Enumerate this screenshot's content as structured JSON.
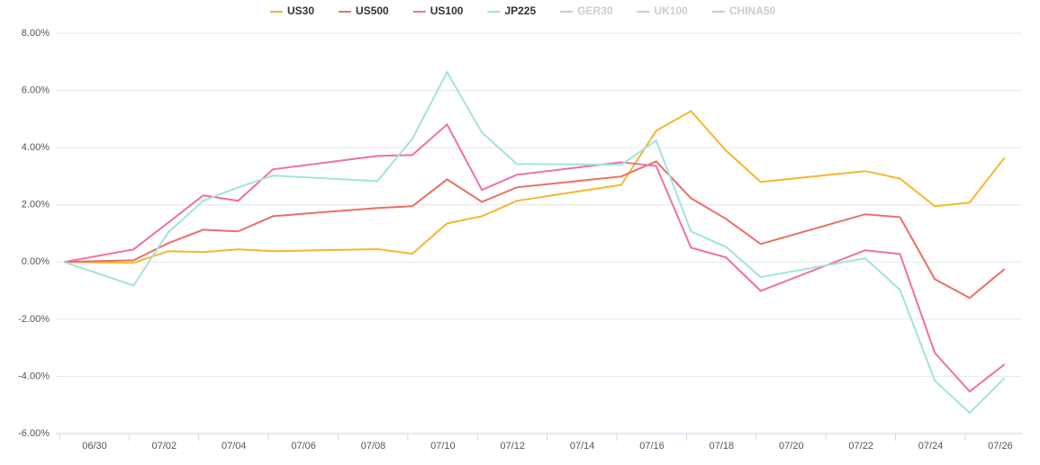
{
  "chart_data": {
    "type": "line",
    "x": [
      "06/29",
      "07/01",
      "07/02",
      "07/03",
      "07/04",
      "07/05",
      "07/08",
      "07/09",
      "07/10",
      "07/11",
      "07/12",
      "07/15",
      "07/16",
      "07/17",
      "07/18",
      "07/19",
      "07/22",
      "07/23",
      "07/24",
      "07/25",
      "07/26"
    ],
    "series": [
      {
        "name": "US30",
        "color": "#f4b82e",
        "values": [
          0,
          -0.03,
          0.38,
          0.35,
          0.44,
          0.38,
          0.45,
          0.29,
          1.35,
          1.6,
          2.14,
          2.7,
          4.59,
          5.28,
          3.9,
          2.8,
          3.18,
          2.92,
          1.95,
          2.08,
          3.65
        ]
      },
      {
        "name": "US500",
        "color": "#ea7064",
        "values": [
          0,
          0.06,
          0.66,
          1.13,
          1.07,
          1.6,
          1.89,
          1.95,
          2.89,
          2.1,
          2.61,
          2.99,
          3.52,
          2.23,
          1.51,
          0.63,
          1.67,
          1.57,
          -0.6,
          -1.26,
          -0.25
        ]
      },
      {
        "name": "US100",
        "color": "#f06fa6",
        "values": [
          0,
          0.44,
          1.38,
          2.33,
          2.14,
          3.24,
          3.71,
          3.74,
          4.81,
          2.52,
          3.05,
          3.49,
          3.36,
          0.5,
          0.16,
          -1.01,
          0.41,
          0.28,
          -3.18,
          -4.53,
          -3.58
        ]
      },
      {
        "name": "JP225",
        "color": "#a3e3dc",
        "values": [
          0,
          -0.82,
          1.04,
          2.14,
          2.61,
          3.02,
          2.83,
          4.31,
          6.64,
          4.53,
          3.43,
          3.4,
          4.25,
          1.07,
          0.53,
          -0.53,
          0.13,
          -0.97,
          -4.15,
          -5.28,
          -4.06
        ]
      },
      {
        "name": "GER30",
        "color": "#cccccc",
        "visible": false
      },
      {
        "name": "UK100",
        "color": "#cccccc",
        "visible": false
      },
      {
        "name": "CHINA50",
        "color": "#cccccc",
        "visible": false
      }
    ],
    "xticks": [
      "06/30",
      "07/02",
      "07/04",
      "07/06",
      "07/08",
      "07/10",
      "07/12",
      "07/14",
      "07/16",
      "07/18",
      "07/20",
      "07/22",
      "07/24",
      "07/26"
    ],
    "ylim": [
      -6,
      8
    ],
    "yticks": [
      {
        "value": -6,
        "label": "-6.00%"
      },
      {
        "value": -4,
        "label": "-4.00%"
      },
      {
        "value": -2,
        "label": "-2.00%"
      },
      {
        "value": 0,
        "label": "0.00%"
      },
      {
        "value": 2,
        "label": "2.00%"
      },
      {
        "value": 4,
        "label": "4.00%"
      },
      {
        "value": 6,
        "label": "6.00%"
      },
      {
        "value": 8,
        "label": "8.00%"
      }
    ],
    "grid": true,
    "legend": "top"
  }
}
